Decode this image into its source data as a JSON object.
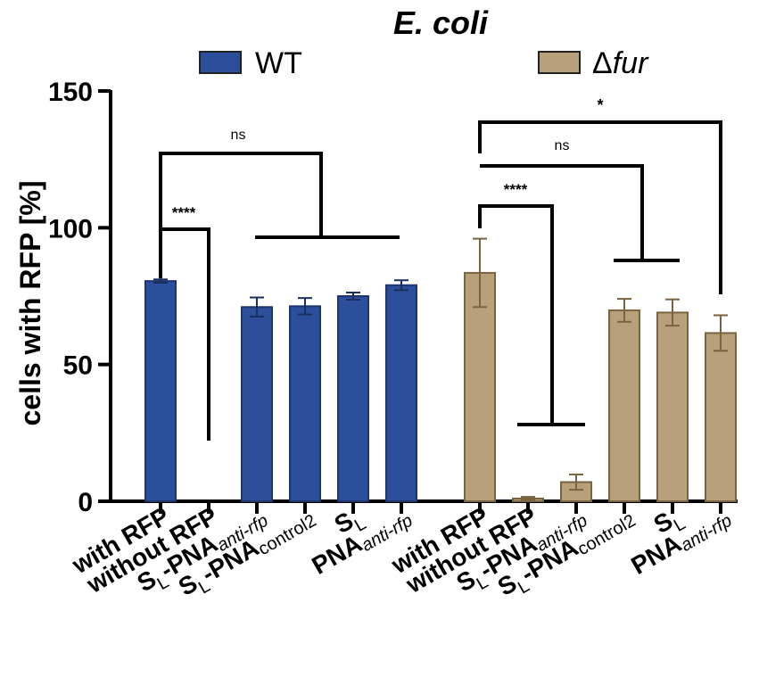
{
  "chart_data": {
    "type": "bar",
    "title": "E. coli",
    "ylabel": "cells with RFP [%]",
    "xlabel": "",
    "ylim": [
      0,
      150
    ],
    "yticks": [
      0,
      50,
      100,
      150
    ],
    "legend": [
      {
        "name": "WT",
        "color": "#2c4f9c"
      },
      {
        "name": "Δfur",
        "color": "#b8a07a"
      }
    ],
    "groups": [
      {
        "name": "WT",
        "color": "#2c4f9c",
        "bars": [
          {
            "label": "with RFP",
            "label_main": "with RFP",
            "label_sub": "",
            "value": 80.5,
            "err": 0.6
          },
          {
            "label": "without RFP",
            "label_main": "without RFP",
            "label_sub": "",
            "value": 0,
            "err": 0
          },
          {
            "label": "SL-PNAanti-rfp",
            "label_main": "S",
            "label_sub": "L",
            "label_rest": "-PNA",
            "label_sub2": "anti-rfp",
            "value": 71,
            "err": 3.5
          },
          {
            "label": "SL-PNAcontrol2",
            "label_main": "S",
            "label_sub": "L",
            "label_rest": "-PNA",
            "label_sub2": "control2",
            "value": 71.3,
            "err": 3
          },
          {
            "label": "SL",
            "label_main": "S",
            "label_sub": "L",
            "label_rest": "",
            "label_sub2": "",
            "value": 75,
            "err": 1.3
          },
          {
            "label": "PNAanti-rfp",
            "label_main": "PNA",
            "label_sub": "anti-rfp",
            "value": 79,
            "err": 1.8
          }
        ]
      },
      {
        "name": "Δfur",
        "color": "#b8a07a",
        "bars": [
          {
            "label": "with RFP",
            "label_main": "with RFP",
            "label_sub": "",
            "value": 83.5,
            "err": 12.5
          },
          {
            "label": "without RFP",
            "label_main": "without RFP",
            "label_sub": "",
            "value": 1,
            "err": 0.6
          },
          {
            "label": "SL-PNAanti-rfp",
            "label_main": "S",
            "label_sub": "L",
            "label_rest": "-PNA",
            "label_sub2": "anti-rfp",
            "value": 7,
            "err": 2.8
          },
          {
            "label": "SL-PNAcontrol2",
            "label_main": "S",
            "label_sub": "L",
            "label_rest": "-PNA",
            "label_sub2": "control2",
            "value": 69.8,
            "err": 4.2
          },
          {
            "label": "SL",
            "label_main": "S",
            "label_sub": "L",
            "label_rest": "",
            "label_sub2": "",
            "value": 69,
            "err": 4.8
          },
          {
            "label": "PNAanti-rfp",
            "label_main": "PNA",
            "label_sub": "anti-rfp",
            "value": 61.5,
            "err": 6.5
          }
        ]
      }
    ],
    "annotations": [
      {
        "text": "ns",
        "group": 0,
        "from": 0,
        "to": [
          2,
          5
        ]
      },
      {
        "text": "****",
        "group": 0,
        "from": 0,
        "to": [
          1
        ]
      },
      {
        "text": "*",
        "group": 1,
        "from": 0,
        "to": [
          5
        ]
      },
      {
        "text": "ns",
        "group": 1,
        "from": 0,
        "to": [
          3,
          4
        ]
      },
      {
        "text": "****",
        "group": 1,
        "from": 0,
        "to": [
          1,
          2
        ]
      }
    ]
  }
}
